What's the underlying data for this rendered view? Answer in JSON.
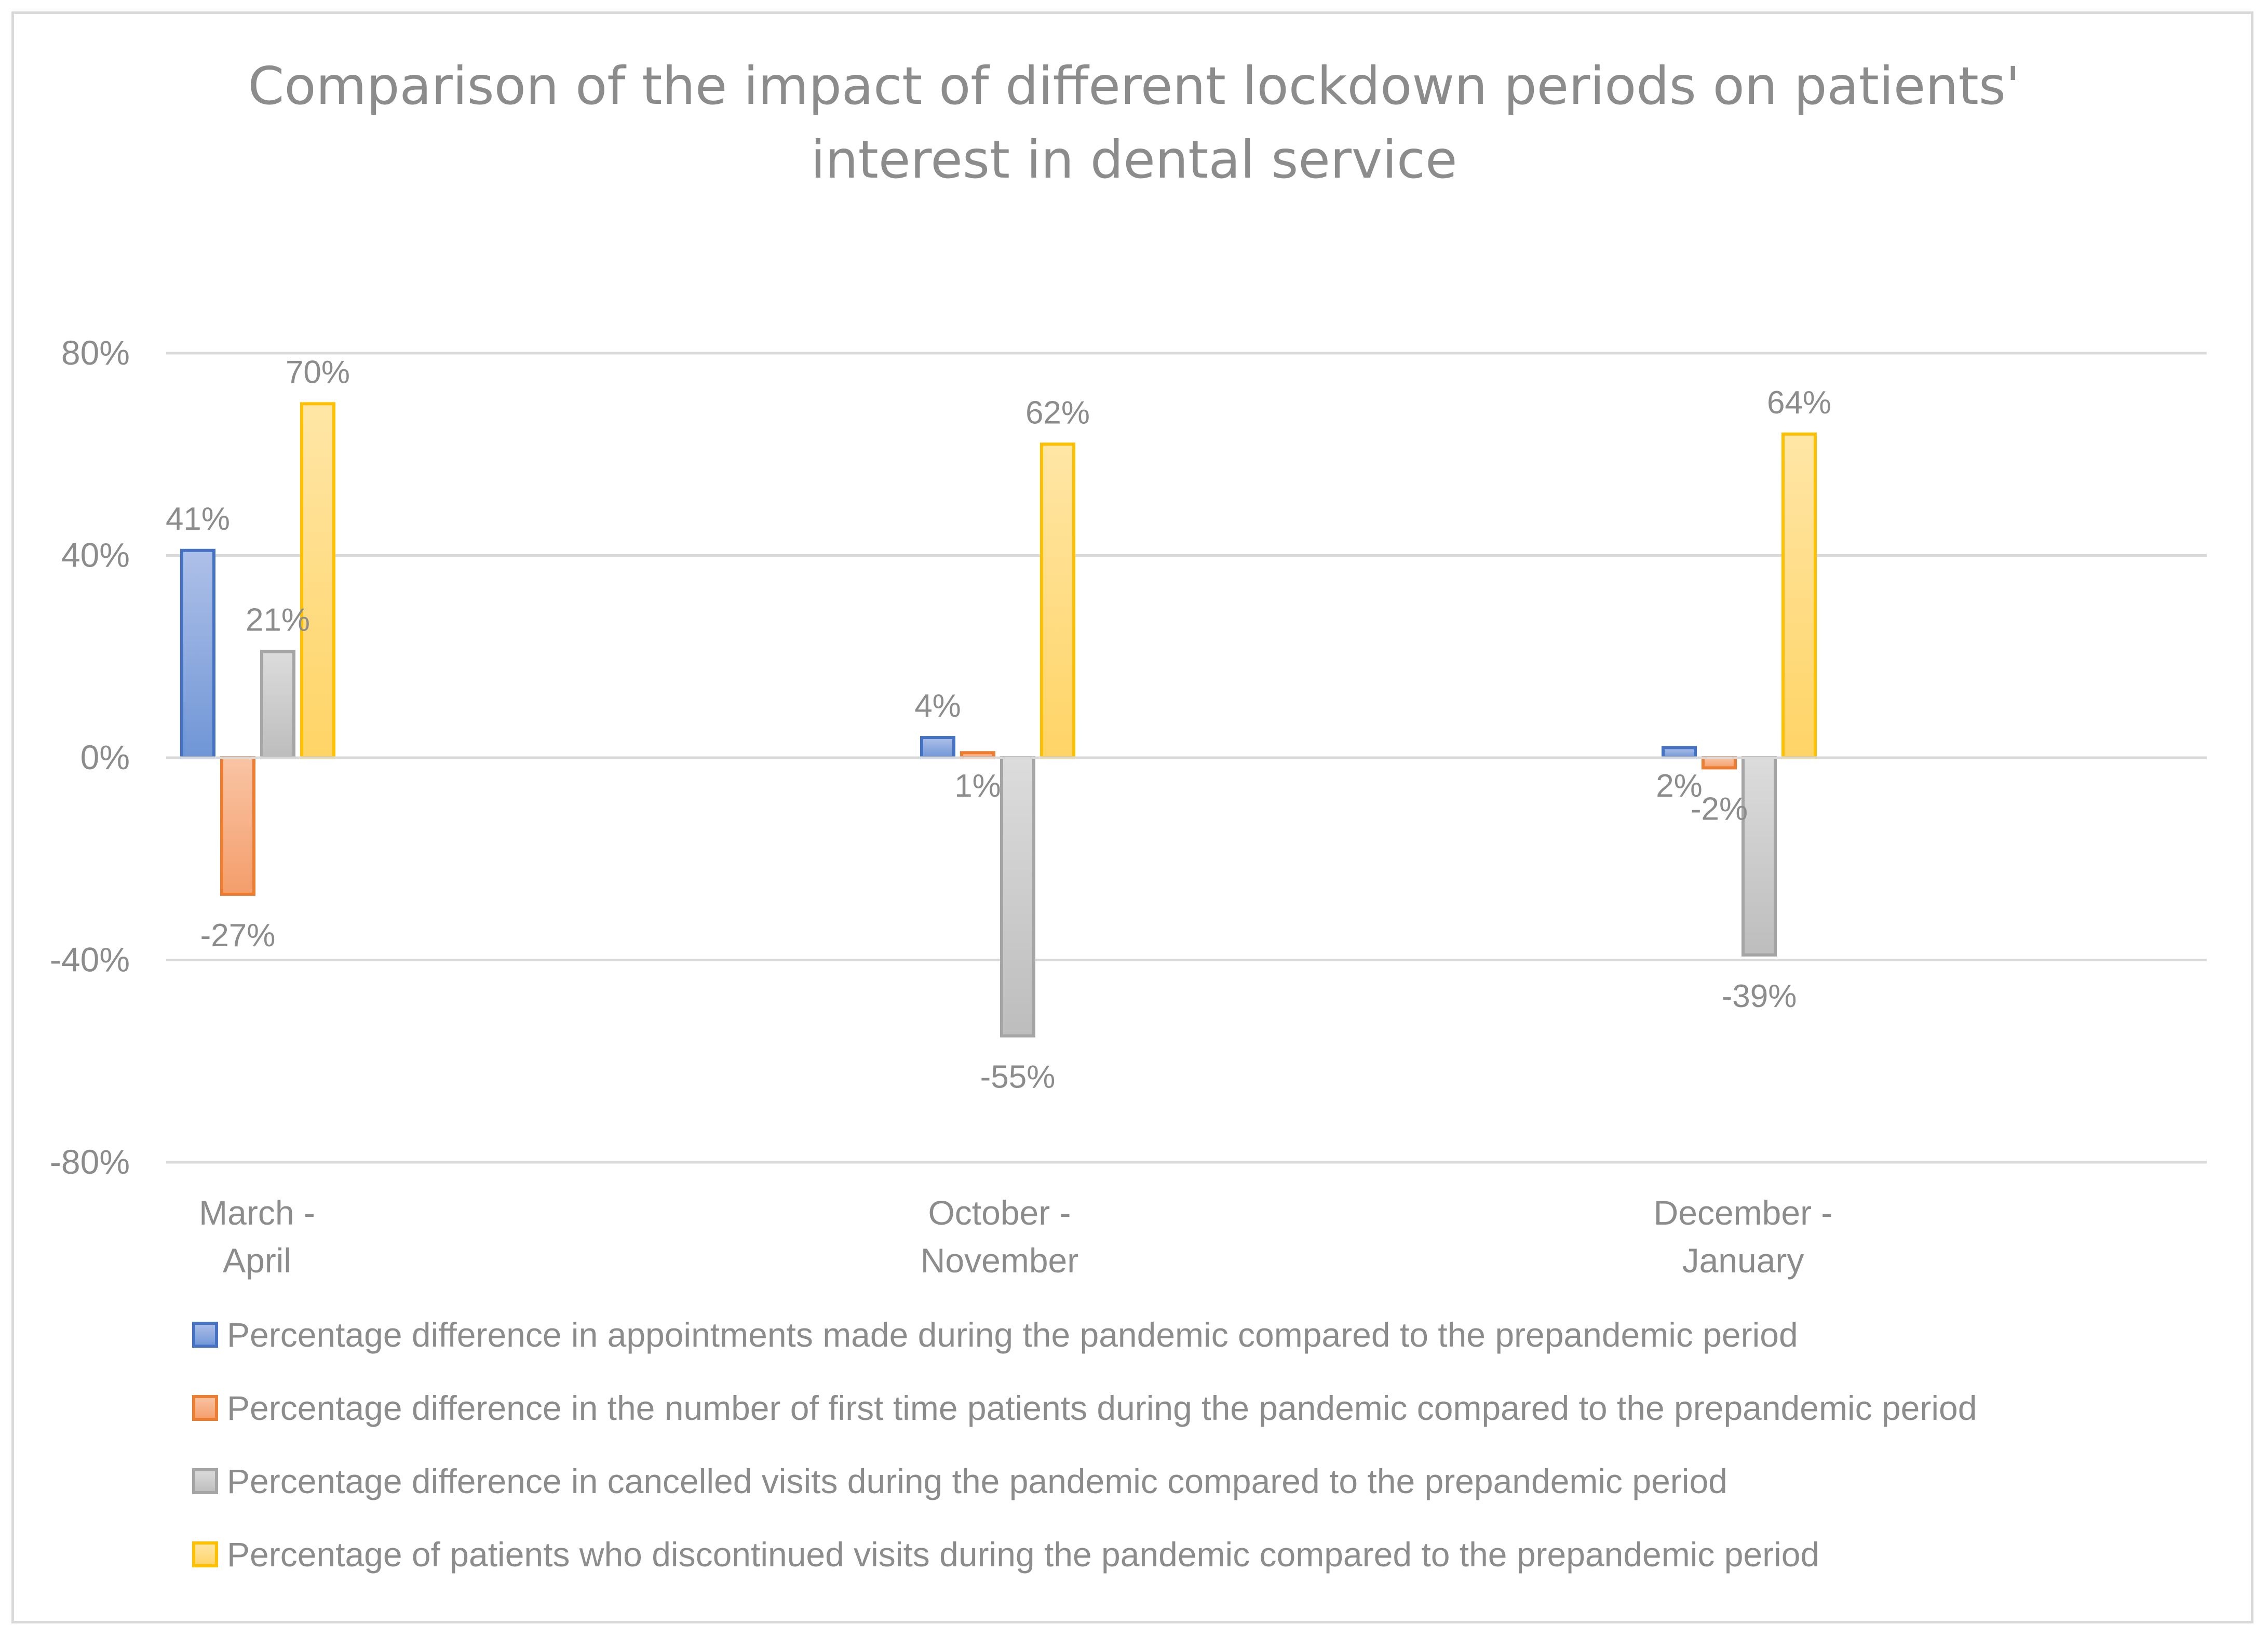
{
  "chart_data": {
    "type": "bar",
    "title": "Comparison of the impact of different lockdown periods on patients' interest in dental service",
    "title_lines": [
      "Comparison of the impact of different lockdown periods on patients'",
      "interest in dental service"
    ],
    "categories": [
      "March - April",
      "October - November",
      "December - January"
    ],
    "category_lines": [
      [
        "March -",
        "April"
      ],
      [
        "October -",
        "November"
      ],
      [
        "December -",
        "January"
      ]
    ],
    "ylim": [
      -80,
      80
    ],
    "yticks": [
      80,
      40,
      0,
      -40,
      -80
    ],
    "ytick_labels": [
      "80%",
      "40%",
      "0%",
      "-40%",
      "-80%"
    ],
    "xlabel": "",
    "ylabel": "",
    "grid": true,
    "legend_position": "bottom",
    "series": [
      {
        "name": "Percentage difference in appointments made during the pandemic compared to the prepandemic period",
        "values": [
          41,
          4,
          2
        ],
        "labels": [
          "41%",
          "4%",
          "2%"
        ],
        "color": "#4472c4",
        "fill_light": "#aec0e8",
        "fill_dark": "#7096d6"
      },
      {
        "name": "Percentage difference in the number of first time patients during the pandemic compared to the prepandemic period",
        "values": [
          -27,
          1,
          -2
        ],
        "labels": [
          "-27%",
          "1%",
          "-2%"
        ],
        "color": "#ed7d31",
        "fill_light": "#f9c4a4",
        "fill_dark": "#f49e6b"
      },
      {
        "name": "Percentage difference in cancelled visits during the pandemic compared to the prepandemic period",
        "values": [
          21,
          -55,
          -39
        ],
        "labels": [
          "21%",
          "-55%",
          "-39%"
        ],
        "color": "#a5a5a5",
        "fill_light": "#dcdcdc",
        "fill_dark": "#bdbdbd"
      },
      {
        "name": "Percentage of patients who discontinued visits during the pandemic compared to the prepandemic period",
        "values": [
          70,
          62,
          64
        ],
        "labels": [
          "70%",
          "62%",
          "64%"
        ],
        "color": "#ffc000",
        "fill_light": "#ffe6a6",
        "fill_dark": "#ffd466"
      }
    ]
  }
}
